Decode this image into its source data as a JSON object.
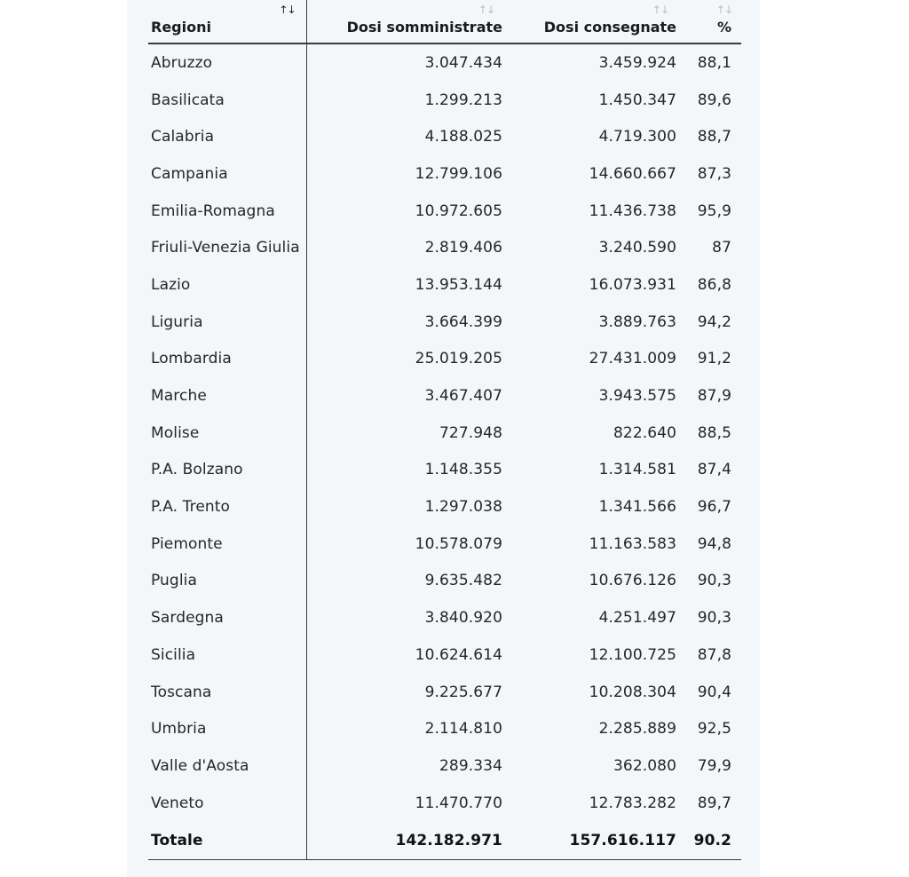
{
  "table": {
    "sort_indicator": "↑↓",
    "headers": {
      "region": "Regioni",
      "administered": "Dosi somministrate",
      "delivered": "Dosi consegnate",
      "percent": "%"
    },
    "rows": [
      {
        "region": "Abruzzo",
        "administered": "3.047.434",
        "delivered": "3.459.924",
        "percent": "88,1"
      },
      {
        "region": "Basilicata",
        "administered": "1.299.213",
        "delivered": "1.450.347",
        "percent": "89,6"
      },
      {
        "region": "Calabria",
        "administered": "4.188.025",
        "delivered": "4.719.300",
        "percent": "88,7"
      },
      {
        "region": "Campania",
        "administered": "12.799.106",
        "delivered": "14.660.667",
        "percent": "87,3"
      },
      {
        "region": "Emilia-Romagna",
        "administered": "10.972.605",
        "delivered": "11.436.738",
        "percent": "95,9"
      },
      {
        "region": "Friuli-Venezia Giulia",
        "administered": "2.819.406",
        "delivered": "3.240.590",
        "percent": "87"
      },
      {
        "region": "Lazio",
        "administered": "13.953.144",
        "delivered": "16.073.931",
        "percent": "86,8"
      },
      {
        "region": "Liguria",
        "administered": "3.664.399",
        "delivered": "3.889.763",
        "percent": "94,2"
      },
      {
        "region": "Lombardia",
        "administered": "25.019.205",
        "delivered": "27.431.009",
        "percent": "91,2"
      },
      {
        "region": "Marche",
        "administered": "3.467.407",
        "delivered": "3.943.575",
        "percent": "87,9"
      },
      {
        "region": "Molise",
        "administered": "727.948",
        "delivered": "822.640",
        "percent": "88,5"
      },
      {
        "region": "P.A. Bolzano",
        "administered": "1.148.355",
        "delivered": "1.314.581",
        "percent": "87,4"
      },
      {
        "region": "P.A. Trento",
        "administered": "1.297.038",
        "delivered": "1.341.566",
        "percent": "96,7"
      },
      {
        "region": "Piemonte",
        "administered": "10.578.079",
        "delivered": "11.163.583",
        "percent": "94,8"
      },
      {
        "region": "Puglia",
        "administered": "9.635.482",
        "delivered": "10.676.126",
        "percent": "90,3"
      },
      {
        "region": "Sardegna",
        "administered": "3.840.920",
        "delivered": "4.251.497",
        "percent": "90,3"
      },
      {
        "region": "Sicilia",
        "administered": "10.624.614",
        "delivered": "12.100.725",
        "percent": "87,8"
      },
      {
        "region": "Toscana",
        "administered": "9.225.677",
        "delivered": "10.208.304",
        "percent": "90,4"
      },
      {
        "region": "Umbria",
        "administered": "2.114.810",
        "delivered": "2.285.889",
        "percent": "92,5"
      },
      {
        "region": "Valle d'Aosta",
        "administered": "289.334",
        "delivered": "362.080",
        "percent": "79,9"
      },
      {
        "region": "Veneto",
        "administered": "11.470.770",
        "delivered": "12.783.282",
        "percent": "89,7"
      }
    ],
    "total": {
      "region": "Totale",
      "administered": "142.182.971",
      "delivered": "157.616.117",
      "percent": "90.2"
    }
  },
  "colors": {
    "panel_background": "#f3f7fa",
    "text": "#262626",
    "rule": "#3a3a3a",
    "sort_inactive": "#b8bec4",
    "sort_active": "#222222"
  }
}
